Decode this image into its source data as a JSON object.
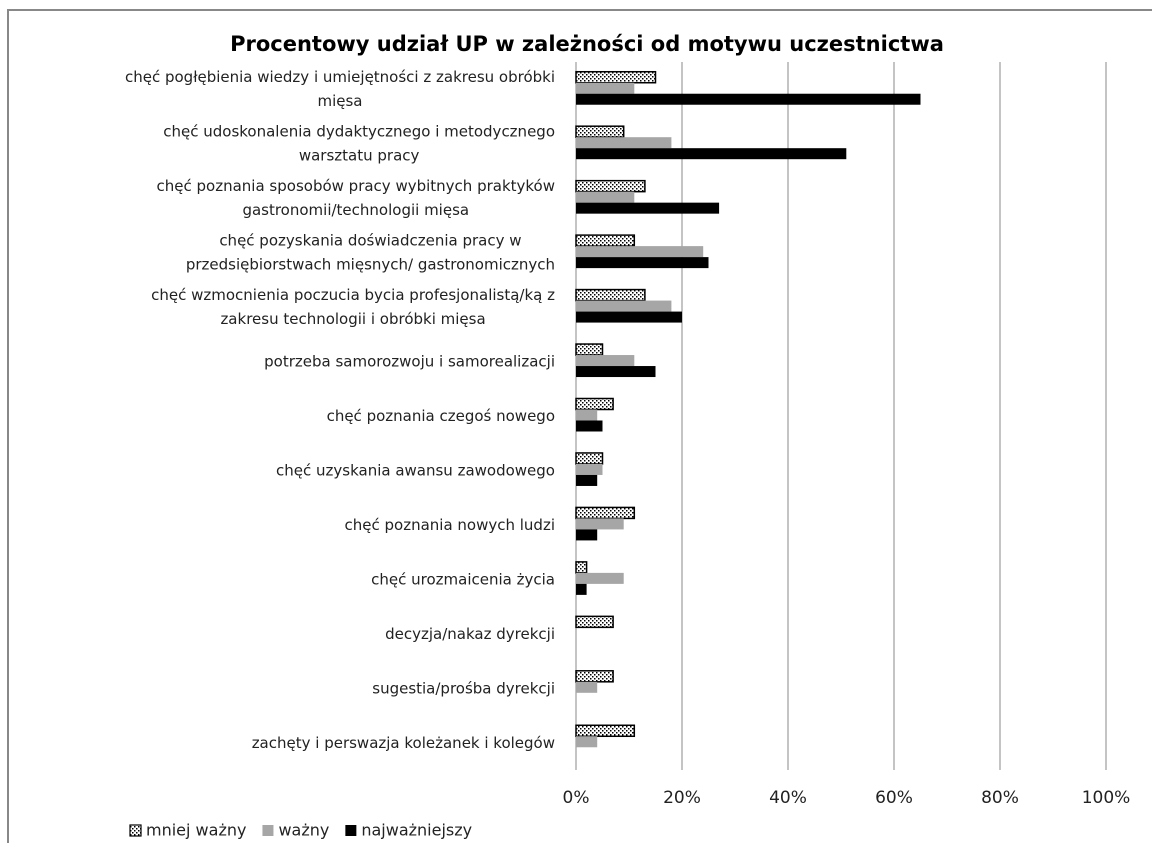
{
  "chart_data": {
    "type": "hbar",
    "title": "Procentowy udział UP w zależności od motywu uczestnictwa",
    "categories": [
      "chęć pogłębienia wiedzy i umiejętności z zakresu obróbki\nmięsa",
      "chęć udoskonalenia dydaktycznego i metodycznego\nwarsztatu pracy",
      "chęć poznania sposobów pracy wybitnych praktyków\ngastronomii/technologii mięsa",
      "chęć pozyskania doświadczenia pracy w\nprzedsiębiorstwach mięsnych/ gastronomicznych",
      "chęć wzmocnienia poczucia bycia profesjonalistą/ką z\nzakresu technologii i obróbki mięsa",
      "potrzeba samorozwoju i samorealizacji",
      "chęć poznania czegoś nowego",
      "chęć uzyskania awansu zawodowego",
      "chęć poznania nowych ludzi",
      "chęć urozmaicenia życia",
      "decyzja/nakaz dyrekcji",
      "sugestia/prośba dyrekcji",
      "zachęty i perswazja koleżanek i kolegów"
    ],
    "series": [
      {
        "name": "mniej ważny",
        "color": "#ffffff",
        "pattern": "dots",
        "values": [
          15,
          9,
          13,
          11,
          13,
          5,
          7,
          5,
          11,
          2,
          7,
          7,
          11
        ]
      },
      {
        "name": "ważny",
        "color": "#a6a6a6",
        "values": [
          11,
          18,
          11,
          24,
          18,
          11,
          4,
          5,
          9,
          9,
          0,
          4,
          4
        ]
      },
      {
        "name": "najważniejszy",
        "color": "#000000",
        "values": [
          65,
          51,
          27,
          25,
          20,
          15,
          5,
          4,
          4,
          2,
          0,
          0,
          0
        ]
      }
    ],
    "xlim": [
      0,
      100
    ],
    "xticks": [
      {
        "value": 0,
        "label": "0%"
      },
      {
        "value": 20,
        "label": "20%"
      },
      {
        "value": 40,
        "label": "40%"
      },
      {
        "value": 60,
        "label": "60%"
      },
      {
        "value": 80,
        "label": "80%"
      },
      {
        "value": 100,
        "label": "100%"
      }
    ],
    "grid": true,
    "legend": "bottom-left"
  }
}
